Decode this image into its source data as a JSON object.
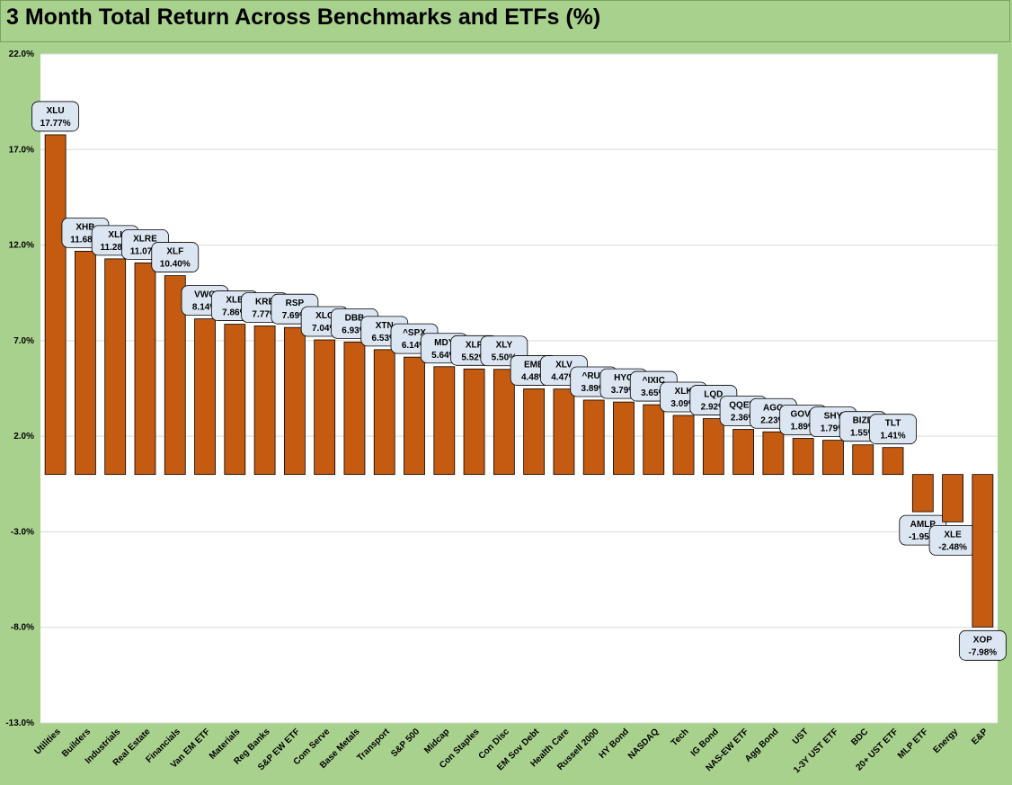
{
  "chart_data": {
    "type": "bar",
    "title": "3 Month Total Return Across Benchmarks and ETFs (%)",
    "ylim": [
      -13.0,
      22.0
    ],
    "yticks": [
      "22.0%",
      "17.0%",
      "12.0%",
      "7.0%",
      "2.0%",
      "-3.0%",
      "-8.0%",
      "-13.0%"
    ],
    "ytick_values": [
      22,
      17,
      12,
      7,
      2,
      -3,
      -8,
      -13
    ],
    "grid": true,
    "bar_color": "#c55a11",
    "categories": [
      "Utilities",
      "Builders",
      "Industrials",
      "Real Estate",
      "Financials",
      "Van EM ETF",
      "Materials",
      "Reg Banks",
      "S&P EW ETF",
      "Com Serve",
      "Base Metals",
      "Transport",
      "S&P 500",
      "Midcap",
      "Con Staples",
      "Con Disc",
      "EM Sov Debt",
      "Health Care",
      "Russell 2000",
      "HY Bond",
      "NASDAQ",
      "Tech",
      "IG Bond",
      "NAS-EW ETF",
      "Agg Bond",
      "UST",
      "1-3Y UST ETF",
      "BDC",
      "20+ UST ETF",
      "MLP ETF",
      "Energy",
      "E&P"
    ],
    "tickers": [
      "XLU",
      "XHB",
      "XLI",
      "XLRE",
      "XLF",
      "VWO",
      "XLB",
      "KRE",
      "RSP",
      "XLC",
      "DBB",
      "XTN",
      "^SPX",
      "MDY",
      "XLP",
      "XLY",
      "EMB",
      "XLV",
      "^RUT",
      "HYG",
      "^IXIC",
      "XLK",
      "LQD",
      "QQEW",
      "AGG",
      "GOVT",
      "SHY",
      "BIZD",
      "TLT",
      "AMLP",
      "XLE",
      "XOP"
    ],
    "value_labels": [
      "17.77%",
      "11.68%",
      "11.28%",
      "11.07%",
      "10.40%",
      "8.14%",
      "7.86%",
      "7.77%",
      "7.69%",
      "7.04%",
      "6.93%",
      "6.53%",
      "6.14%",
      "5.64%",
      "5.52%",
      "5.50%",
      "4.48%",
      "4.47%",
      "3.89%",
      "3.79%",
      "3.65%",
      "3.09%",
      "2.92%",
      "2.36%",
      "2.23%",
      "1.89%",
      "1.79%",
      "1.55%",
      "1.41%",
      "-1.95%",
      "-2.48%",
      "-7.98%"
    ],
    "values": [
      17.77,
      11.68,
      11.28,
      11.07,
      10.4,
      8.14,
      7.86,
      7.77,
      7.69,
      7.04,
      6.93,
      6.53,
      6.14,
      5.64,
      5.52,
      5.5,
      4.48,
      4.47,
      3.89,
      3.79,
      3.65,
      3.09,
      2.92,
      2.36,
      2.23,
      1.89,
      1.79,
      1.55,
      1.41,
      -1.95,
      -2.48,
      -7.98
    ]
  }
}
